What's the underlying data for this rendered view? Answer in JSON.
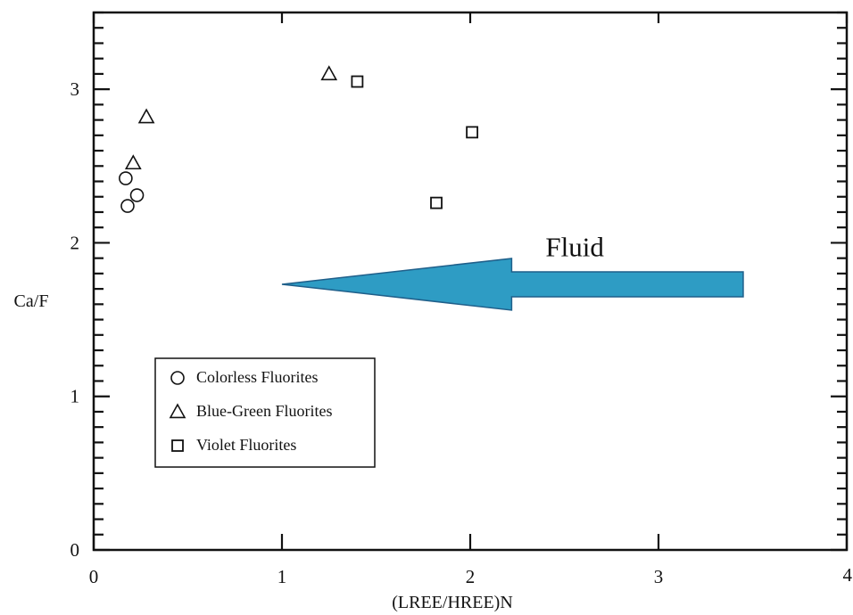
{
  "chart_data": {
    "type": "scatter",
    "title": "",
    "xlabel": "(LREE/HREE)N",
    "ylabel": "Ca/F",
    "xlim": [
      0,
      4
    ],
    "ylim": [
      0,
      3.5
    ],
    "x_ticks": [
      {
        "value": 0,
        "label": "0"
      },
      {
        "value": 1,
        "label": "1"
      },
      {
        "value": 2,
        "label": "2"
      },
      {
        "value": 3,
        "label": "3"
      },
      {
        "value": 4,
        "label": "4"
      }
    ],
    "y_ticks": [
      {
        "value": 0,
        "label": "0"
      },
      {
        "value": 1,
        "label": "1"
      },
      {
        "value": 2,
        "label": "2"
      },
      {
        "value": 3,
        "label": "3"
      }
    ],
    "grid": false,
    "legend_position": "lower-left",
    "series": [
      {
        "name": "Colorless Fluorites",
        "marker": "circle",
        "points": [
          [
            0.17,
            2.42
          ],
          [
            0.18,
            2.24
          ],
          [
            0.23,
            2.31
          ]
        ]
      },
      {
        "name": "Blue-Green Fluorites",
        "marker": "triangle",
        "points": [
          [
            0.21,
            2.52
          ],
          [
            0.28,
            2.82
          ],
          [
            1.25,
            3.1
          ]
        ]
      },
      {
        "name": "Violet Fluorites",
        "marker": "square",
        "points": [
          [
            1.4,
            3.05
          ],
          [
            1.82,
            2.26
          ],
          [
            2.01,
            2.72
          ]
        ]
      }
    ],
    "annotations": [
      {
        "text": "Fluid",
        "kind": "arrow-left",
        "color": "#2e9cc4",
        "x_start": 3.45,
        "x_end": 1.0,
        "y": 1.73,
        "label_x": 2.4,
        "label_y": 1.97
      }
    ]
  }
}
